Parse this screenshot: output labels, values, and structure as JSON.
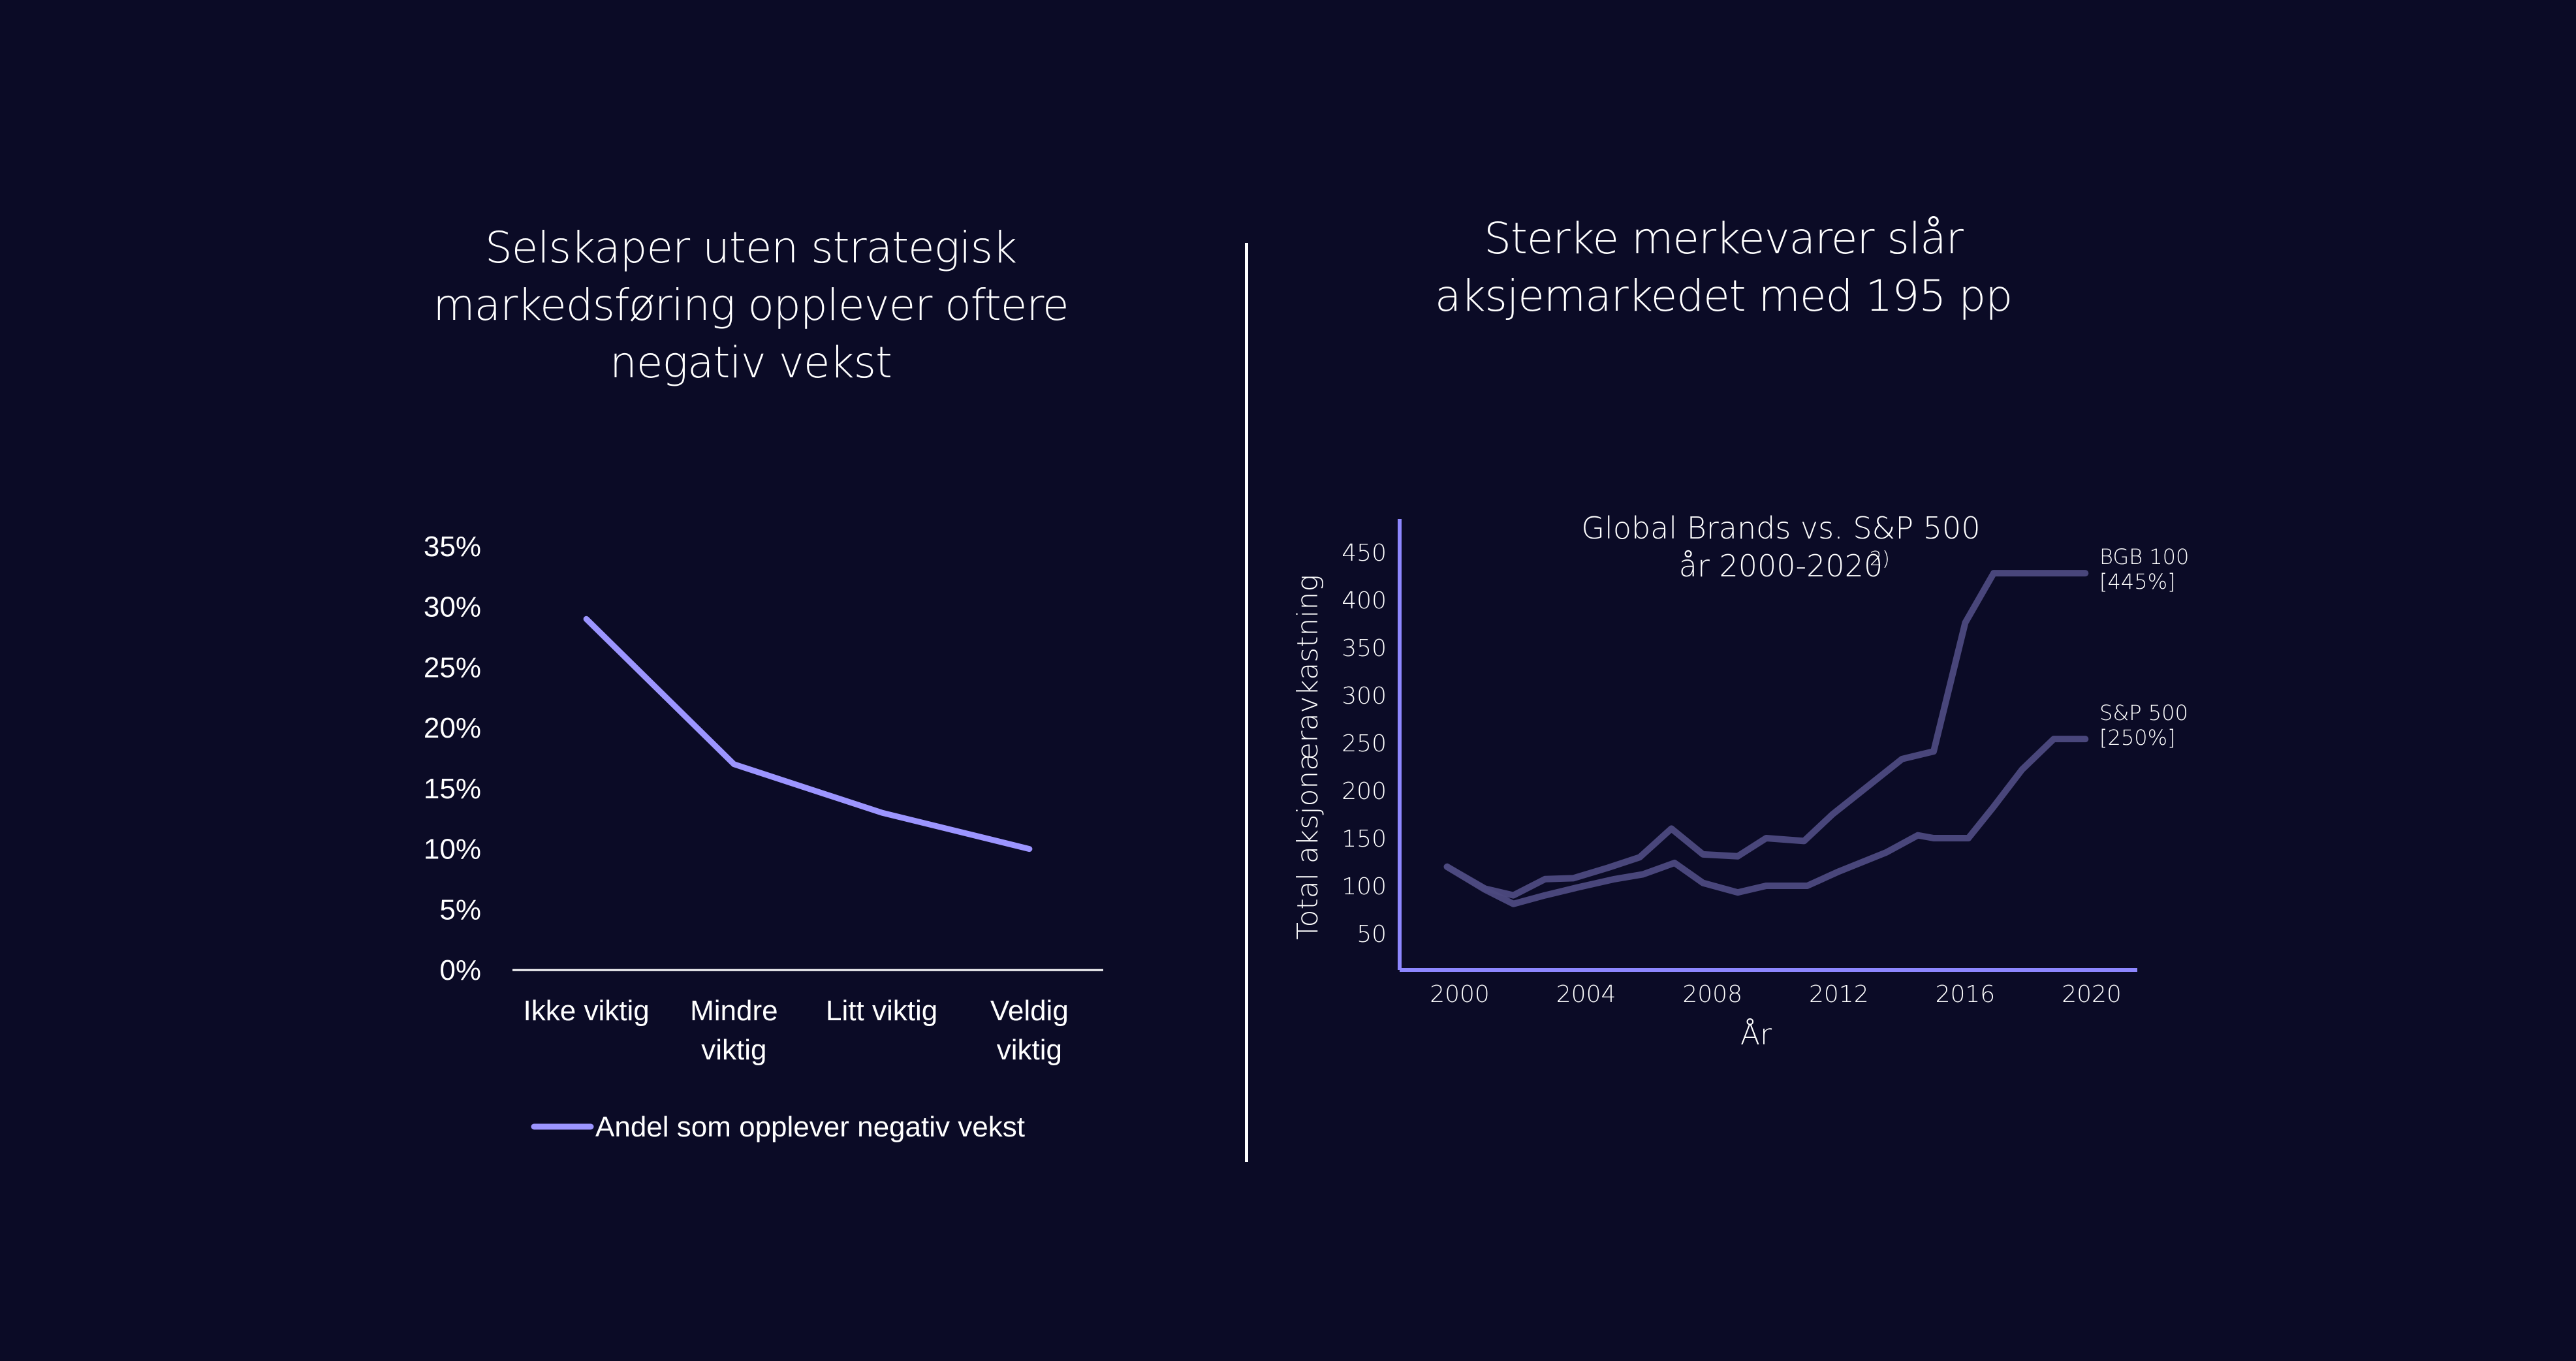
{
  "headings": {
    "left": [
      "Selskaper uten strategisk",
      "markedsføring opplever oftere",
      "negativ vekst"
    ],
    "right": [
      "Sterke merkevarer slår",
      "aksjemarkedet med  195 pp"
    ]
  },
  "colors": {
    "background": "#0b0b26",
    "line_left": "#9c95ff",
    "line_right": "#4d4a80",
    "axis_right": "#8e87ff",
    "text": "#ffffff"
  },
  "chart_data": [
    {
      "type": "line",
      "title": "",
      "categories": [
        "Ikke viktig",
        "Mindre viktig",
        "Litt viktig",
        "Veldig viktig"
      ],
      "category_lines": [
        [
          "Ikke viktig"
        ],
        [
          "Mindre",
          "viktig"
        ],
        [
          "Litt viktig"
        ],
        [
          "Veldig",
          "viktig"
        ]
      ],
      "series": [
        {
          "name": "Andel som opplever negativ vekst",
          "values": [
            0.29,
            0.17,
            0.13,
            0.1
          ]
        }
      ],
      "yticks": [
        "0%",
        "5%",
        "10%",
        "15%",
        "20%",
        "25%",
        "30%",
        "35%"
      ],
      "ylim": [
        0,
        0.35
      ],
      "grid": false,
      "legend": "bottom",
      "xlabel": "",
      "ylabel": ""
    },
    {
      "type": "line",
      "title_lines": [
        "Global Brands vs. S&P 500",
        "år 2000-2020"
      ],
      "title_superscript": "2)",
      "xlabel": "År",
      "ylabel": "Total aksjonæravkastning",
      "xticks": [
        "2000",
        "2004",
        "2008",
        "2012",
        "2016",
        "2020"
      ],
      "yticks": [
        "50",
        "100",
        "150",
        "200",
        "250",
        "300",
        "350",
        "400",
        "450"
      ],
      "xlim": [
        2000,
        2020
      ],
      "ylim": [
        50,
        450
      ],
      "grid": false,
      "series": [
        {
          "name": "BGB 100",
          "end_label": [
            "BGB 100",
            "[445%]"
          ],
          "x": [
            1999.6,
            2000.8,
            2001.7,
            2002.7,
            2003.6,
            2004.7,
            2005.7,
            2006.7,
            2007.7,
            2008.8,
            2009.7,
            2010.9,
            2011.8,
            2012.9,
            2014.0,
            2015.0,
            2016.0,
            2016.9,
            2017.8,
            2018.7,
            2019.8
          ],
          "values": [
            120,
            97,
            90,
            107,
            108,
            119,
            130,
            160,
            133,
            131,
            150,
            147,
            175,
            204,
            233,
            241,
            376,
            428,
            428,
            428,
            428
          ]
        },
        {
          "name": "S&P 500",
          "end_label": [
            "S&P 500",
            "[250%]"
          ],
          "x": [
            1999.6,
            2000.8,
            2001.7,
            2002.7,
            2003.7,
            2004.9,
            2005.8,
            2006.8,
            2007.7,
            2008.8,
            2009.7,
            2011.0,
            2012.0,
            2013.5,
            2014.5,
            2015.0,
            2016.1,
            2016.9,
            2017.8,
            2018.8,
            2019.8
          ],
          "values": [
            120,
            96,
            81,
            90,
            98,
            107,
            112,
            124,
            103,
            93,
            100,
            100,
            115,
            135,
            153,
            150,
            150,
            183,
            222,
            254,
            254
          ]
        }
      ]
    }
  ]
}
